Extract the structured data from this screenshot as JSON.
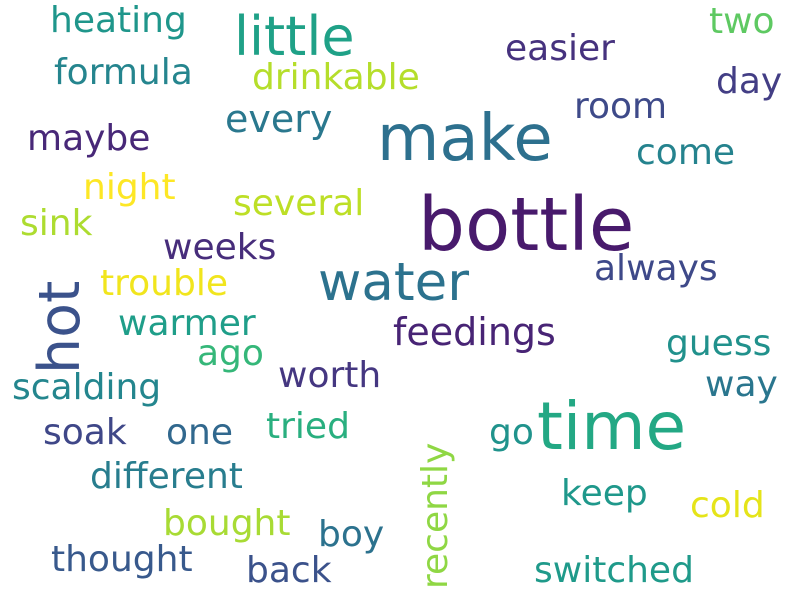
{
  "words": [
    {
      "text": "bottle",
      "color": "#481a6c"
    },
    {
      "text": "time",
      "color": "#23a884"
    },
    {
      "text": "make",
      "color": "#2d708e"
    },
    {
      "text": "water",
      "color": "#2c728e"
    },
    {
      "text": "hot",
      "color": "#3b528b"
    },
    {
      "text": "little",
      "color": "#1fa187"
    },
    {
      "text": "heating",
      "color": "#1f968b"
    },
    {
      "text": "two",
      "color": "#5ec962"
    },
    {
      "text": "easier",
      "color": "#46327e"
    },
    {
      "text": "formula",
      "color": "#25858e"
    },
    {
      "text": "drinkable",
      "color": "#b5de2b"
    },
    {
      "text": "day",
      "color": "#433e85"
    },
    {
      "text": "every",
      "color": "#2a788e"
    },
    {
      "text": "room",
      "color": "#3e4a89"
    },
    {
      "text": "maybe",
      "color": "#482878"
    },
    {
      "text": "come",
      "color": "#25838e"
    },
    {
      "text": "night",
      "color": "#fde725"
    },
    {
      "text": "several",
      "color": "#bddf26"
    },
    {
      "text": "sink",
      "color": "#addc30"
    },
    {
      "text": "weeks",
      "color": "#472d7b"
    },
    {
      "text": "always",
      "color": "#3e4989"
    },
    {
      "text": "trouble",
      "color": "#f1e51d"
    },
    {
      "text": "warmer",
      "color": "#1f9e89"
    },
    {
      "text": "feedings",
      "color": "#482475"
    },
    {
      "text": "guess",
      "color": "#21918c"
    },
    {
      "text": "ago",
      "color": "#35b779"
    },
    {
      "text": "scalding",
      "color": "#24868e"
    },
    {
      "text": "worth",
      "color": "#453781"
    },
    {
      "text": "way",
      "color": "#2a768e"
    },
    {
      "text": "recently",
      "color": "#8fd744"
    },
    {
      "text": "soak",
      "color": "#3f4788"
    },
    {
      "text": "one",
      "color": "#31688e"
    },
    {
      "text": "tried",
      "color": "#29af7f"
    },
    {
      "text": "go",
      "color": "#20938c"
    },
    {
      "text": "different",
      "color": "#287d8e"
    },
    {
      "text": "keep",
      "color": "#1f988b"
    },
    {
      "text": "cold",
      "color": "#e5e419"
    },
    {
      "text": "bought",
      "color": "#a8db34"
    },
    {
      "text": "boy",
      "color": "#2c728e"
    },
    {
      "text": "thought",
      "color": "#38598c"
    },
    {
      "text": "back",
      "color": "#3b528b"
    },
    {
      "text": "switched",
      "color": "#1f9a8a"
    }
  ]
}
